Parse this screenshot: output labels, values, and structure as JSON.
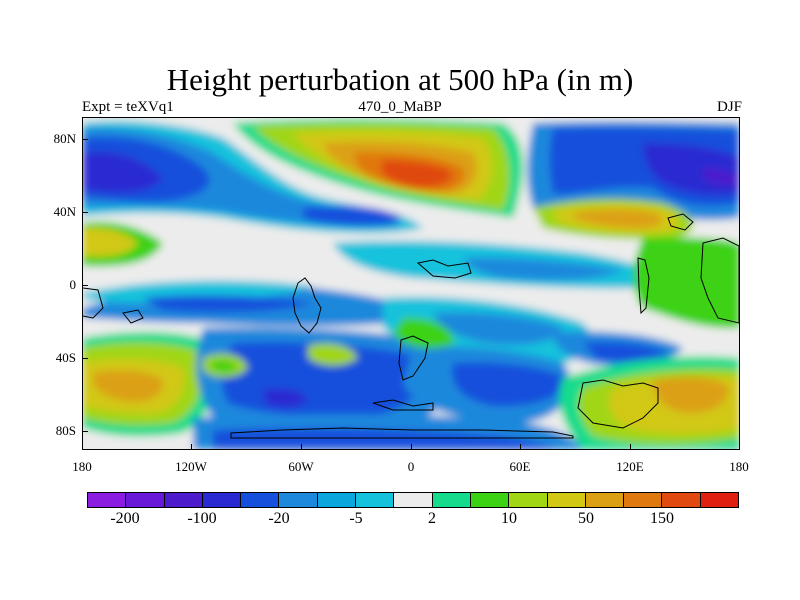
{
  "title": "Height perturbation at 500 hPa (in m)",
  "subtitle_left": "Expt = teXVq1",
  "subtitle_center": "470_0_MaBP",
  "subtitle_right": "DJF",
  "y_ticks": [
    "80N",
    "40N",
    "0",
    "40S",
    "80S"
  ],
  "x_ticks": [
    "180",
    "120W",
    "60W",
    "0",
    "60E",
    "120E",
    "180"
  ],
  "colorbar": {
    "colors": [
      "#8a1de0",
      "#6a18d8",
      "#4c1ccc",
      "#2a2ad2",
      "#1450dc",
      "#1e88dc",
      "#0aa6dc",
      "#14c2dc",
      "#ececec",
      "#14dc8c",
      "#3cd214",
      "#a0d614",
      "#d2c814",
      "#dca014",
      "#e07810",
      "#e04a10",
      "#e02010"
    ],
    "labels": [
      "-200",
      "-100",
      "-20",
      "-5",
      "2",
      "10",
      "50",
      "150"
    ]
  }
}
